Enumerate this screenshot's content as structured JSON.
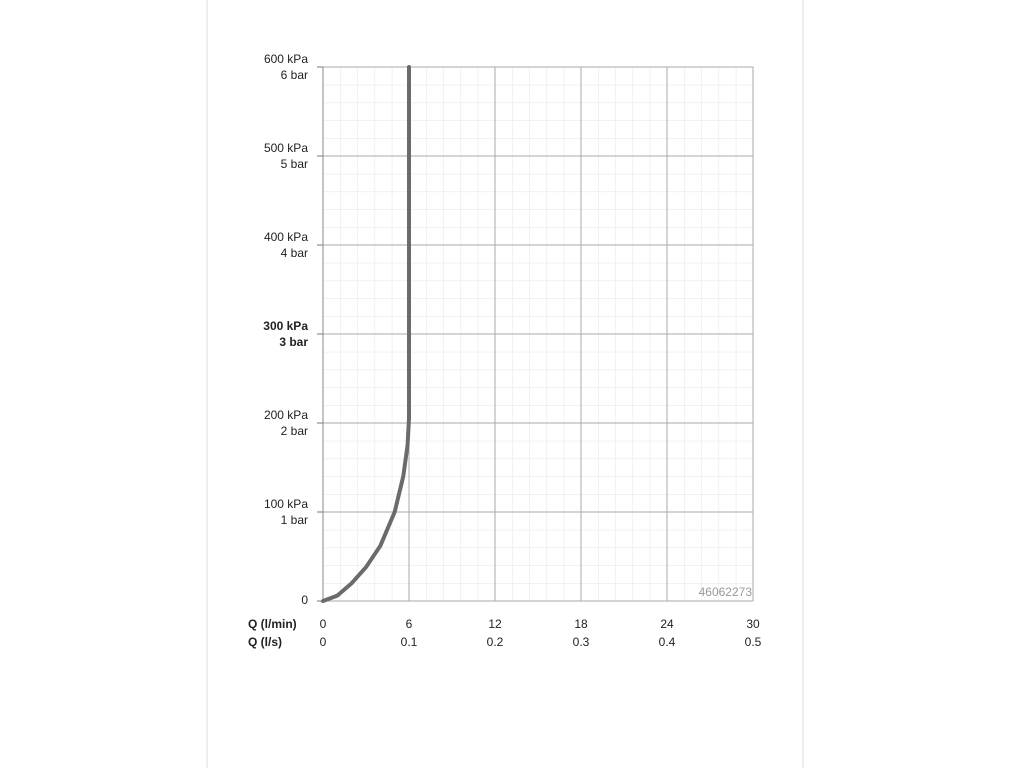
{
  "chart_data": {
    "type": "line",
    "xlabel": "Q (l/min)",
    "x2label": "Q (l/s)",
    "x": [
      0,
      1,
      2,
      3,
      4,
      5,
      5.6,
      5.9,
      6,
      6
    ],
    "values": [
      0,
      6,
      20,
      38,
      62,
      100,
      140,
      175,
      205,
      600
    ],
    "color": "#6b6b6b",
    "xlim": [
      0,
      30
    ],
    "xticks": [
      0,
      6,
      12,
      18,
      24,
      30
    ],
    "x2lim": [
      0,
      0.5
    ],
    "x2ticks": [
      0,
      0.1,
      0.2,
      0.3,
      0.4,
      0.5
    ],
    "ylim": [
      0,
      600
    ],
    "yticks": [
      0,
      {
        "value": 100,
        "label": "100 kPa"
      },
      {
        "value": 200,
        "label": "200 kPa"
      },
      {
        "value": 300,
        "label": "300 kPa"
      },
      {
        "value": 400,
        "label": "400 kPa"
      },
      {
        "value": 500,
        "label": "500 kPa"
      },
      {
        "value": 600,
        "label": "600 kPa"
      }
    ],
    "y2lim": [
      0,
      6
    ],
    "y2ticks": [
      {
        "value": 1,
        "label": "1 bar"
      },
      {
        "value": 2,
        "label": "2 bar"
      },
      {
        "value": 3,
        "label": "3 bar"
      },
      {
        "value": 4,
        "label": "4 bar"
      },
      {
        "value": 5,
        "label": "5 bar"
      },
      {
        "value": 6,
        "label": "6 bar"
      }
    ],
    "grid": true,
    "annotation": "46062273"
  }
}
